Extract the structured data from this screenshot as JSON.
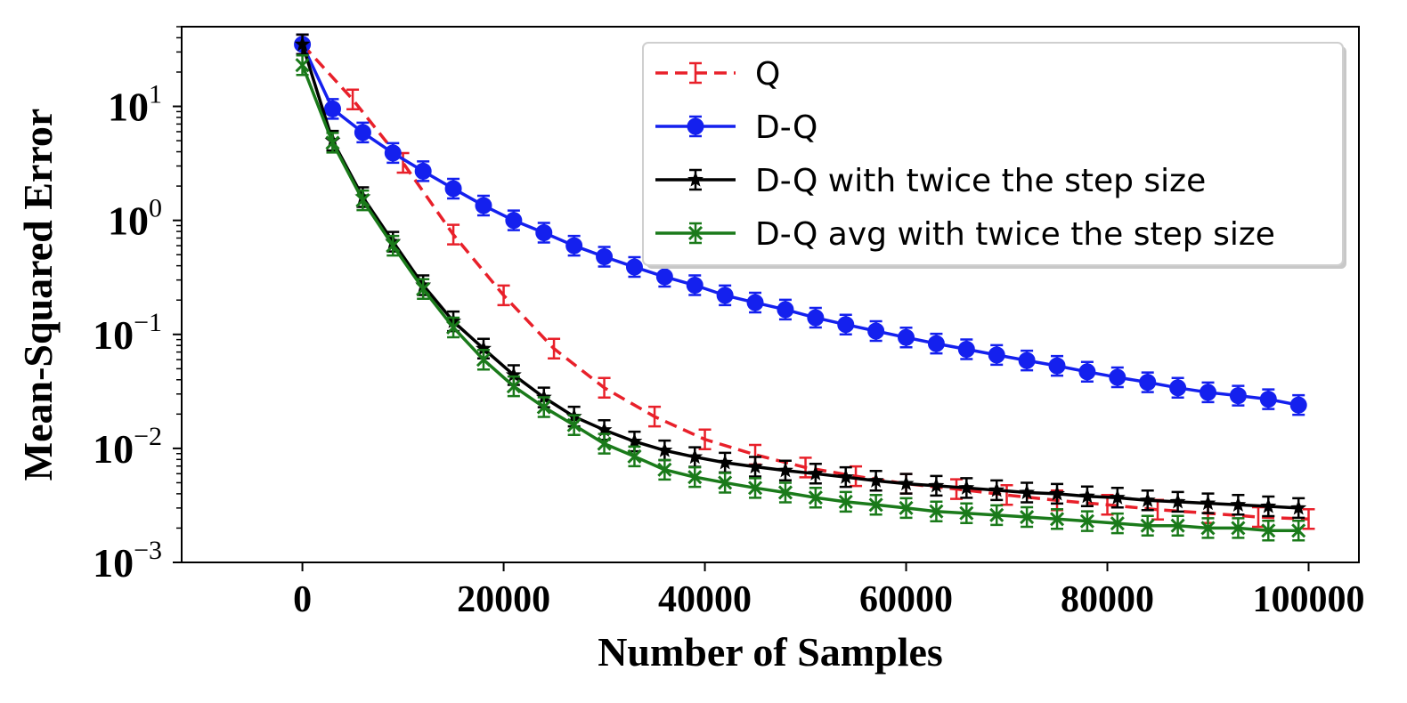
{
  "chart_data": {
    "type": "line",
    "title": "",
    "xlabel": "Number of Samples",
    "ylabel": "Mean-Squared Error",
    "yscale": "log",
    "xlim": [
      -12000,
      105000
    ],
    "ylim": [
      0.001,
      50
    ],
    "grid": false,
    "legend_position": "top-right",
    "xticks": [
      {
        "value": 0,
        "label": "0"
      },
      {
        "value": 20000,
        "label": "20000"
      },
      {
        "value": 40000,
        "label": "40000"
      },
      {
        "value": 60000,
        "label": "60000"
      },
      {
        "value": 80000,
        "label": "80000"
      },
      {
        "value": 100000,
        "label": "100000"
      }
    ],
    "yticks": [
      {
        "value": 10,
        "base": "10",
        "exp": "1"
      },
      {
        "value": 1,
        "base": "10",
        "exp": "0"
      },
      {
        "value": 0.1,
        "base": "10",
        "exp": "−1"
      },
      {
        "value": 0.01,
        "base": "10",
        "exp": "−2"
      },
      {
        "value": 0.001,
        "base": "10",
        "exp": "−3"
      }
    ],
    "series": [
      {
        "name": "Q",
        "color": "#e8202a",
        "dash": true,
        "marker": "none",
        "x": [
          0,
          5000,
          10000,
          15000,
          20000,
          25000,
          30000,
          35000,
          40000,
          45000,
          50000,
          55000,
          60000,
          65000,
          70000,
          75000,
          80000,
          85000,
          90000,
          95000,
          100000
        ],
        "y": [
          35,
          11.5,
          3.2,
          0.75,
          0.22,
          0.075,
          0.034,
          0.019,
          0.012,
          0.0088,
          0.0068,
          0.0057,
          0.0049,
          0.0044,
          0.0039,
          0.0035,
          0.0032,
          0.0029,
          0.0027,
          0.0025,
          0.0024
        ]
      },
      {
        "name": "D-Q",
        "color": "#1420ee",
        "dash": false,
        "marker": "circle",
        "x": [
          0,
          3000,
          6000,
          9000,
          12000,
          15000,
          18000,
          21000,
          24000,
          27000,
          30000,
          33000,
          36000,
          39000,
          42000,
          45000,
          48000,
          51000,
          54000,
          57000,
          60000,
          63000,
          66000,
          69000,
          72000,
          75000,
          78000,
          81000,
          84000,
          87000,
          90000,
          93000,
          96000,
          99000
        ],
        "y": [
          35,
          9.5,
          5.9,
          3.9,
          2.7,
          1.9,
          1.35,
          1.0,
          0.78,
          0.6,
          0.48,
          0.39,
          0.32,
          0.27,
          0.22,
          0.19,
          0.165,
          0.14,
          0.122,
          0.107,
          0.094,
          0.083,
          0.074,
          0.066,
          0.059,
          0.053,
          0.047,
          0.042,
          0.038,
          0.034,
          0.031,
          0.029,
          0.027,
          0.024
        ]
      },
      {
        "name": "D-Q with twice the step size",
        "color": "#000000",
        "dash": false,
        "marker": "star",
        "x": [
          0,
          3000,
          6000,
          9000,
          12000,
          15000,
          18000,
          21000,
          24000,
          27000,
          30000,
          33000,
          36000,
          39000,
          42000,
          45000,
          48000,
          51000,
          54000,
          57000,
          60000,
          63000,
          66000,
          69000,
          72000,
          75000,
          78000,
          81000,
          84000,
          87000,
          90000,
          93000,
          96000,
          99000
        ],
        "y": [
          35,
          5.0,
          1.6,
          0.65,
          0.27,
          0.13,
          0.075,
          0.044,
          0.028,
          0.019,
          0.0145,
          0.0115,
          0.0096,
          0.0084,
          0.0075,
          0.0069,
          0.0064,
          0.006,
          0.0056,
          0.0052,
          0.0049,
          0.0047,
          0.0045,
          0.0043,
          0.0041,
          0.004,
          0.0038,
          0.0037,
          0.0035,
          0.0034,
          0.0033,
          0.0032,
          0.0031,
          0.003
        ]
      },
      {
        "name": "D-Q avg with twice the step size",
        "color": "#1a7a1a",
        "dash": false,
        "marker": "x",
        "x": [
          0,
          3000,
          6000,
          9000,
          12000,
          15000,
          18000,
          21000,
          24000,
          27000,
          30000,
          33000,
          36000,
          39000,
          42000,
          45000,
          48000,
          51000,
          54000,
          57000,
          60000,
          63000,
          66000,
          69000,
          72000,
          75000,
          78000,
          81000,
          84000,
          87000,
          90000,
          93000,
          96000,
          99000
        ],
        "y": [
          23,
          4.8,
          1.5,
          0.6,
          0.25,
          0.115,
          0.06,
          0.035,
          0.023,
          0.016,
          0.011,
          0.0085,
          0.0065,
          0.0056,
          0.005,
          0.0045,
          0.0041,
          0.0037,
          0.0034,
          0.0032,
          0.003,
          0.0028,
          0.0027,
          0.0026,
          0.0025,
          0.0024,
          0.0023,
          0.0022,
          0.0021,
          0.0021,
          0.002,
          0.002,
          0.0019,
          0.0019
        ]
      }
    ]
  }
}
